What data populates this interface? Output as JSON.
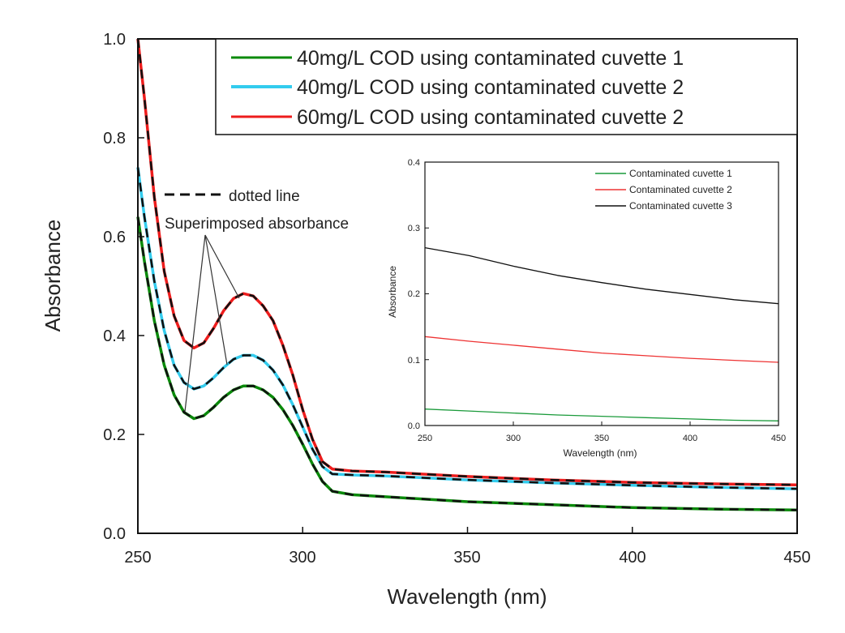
{
  "chart_data": [
    {
      "type": "line",
      "xlabel": "Wavelength (nm)",
      "ylabel": "Absorbance",
      "xlim": [
        250,
        450
      ],
      "ylim": [
        0.0,
        1.0
      ],
      "xticks": [
        "250",
        "300",
        "350",
        "400",
        "450"
      ],
      "yticks": [
        "0.0",
        "0.2",
        "0.4",
        "0.6",
        "0.8",
        "1.0"
      ],
      "legend_position": "top-right",
      "grid": false,
      "series": [
        {
          "name": "40mg/L COD using contaminated cuvette 1",
          "color": "#0a8a0a",
          "x": [
            250,
            252,
            255,
            258,
            261,
            264,
            267,
            270,
            273,
            276,
            279,
            282,
            285,
            288,
            291,
            294,
            297,
            300,
            303,
            306,
            309,
            315,
            325,
            350,
            375,
            400,
            425,
            450
          ],
          "y": [
            0.64,
            0.55,
            0.43,
            0.34,
            0.28,
            0.245,
            0.232,
            0.238,
            0.255,
            0.275,
            0.29,
            0.298,
            0.298,
            0.29,
            0.275,
            0.25,
            0.218,
            0.18,
            0.14,
            0.105,
            0.085,
            0.078,
            0.074,
            0.064,
            0.058,
            0.052,
            0.049,
            0.047
          ]
        },
        {
          "name": "40mg/L COD using contaminated cuvette 2",
          "color": "#33ccee",
          "x": [
            250,
            252,
            255,
            258,
            261,
            264,
            267,
            270,
            273,
            276,
            279,
            282,
            285,
            288,
            291,
            294,
            297,
            300,
            303,
            306,
            309,
            315,
            325,
            350,
            375,
            400,
            425,
            450
          ],
          "y": [
            0.74,
            0.64,
            0.51,
            0.41,
            0.34,
            0.305,
            0.292,
            0.298,
            0.315,
            0.335,
            0.352,
            0.36,
            0.36,
            0.35,
            0.33,
            0.3,
            0.26,
            0.215,
            0.17,
            0.135,
            0.12,
            0.118,
            0.116,
            0.108,
            0.102,
            0.097,
            0.093,
            0.09
          ]
        },
        {
          "name": "60mg/L COD using contaminated cuvette 2",
          "color": "#ee1c1c",
          "x": [
            250,
            252,
            255,
            258,
            261,
            264,
            267,
            270,
            273,
            276,
            279,
            282,
            285,
            288,
            291,
            294,
            297,
            300,
            303,
            306,
            309,
            315,
            325,
            350,
            375,
            400,
            425,
            450
          ],
          "y": [
            1.0,
            0.88,
            0.68,
            0.53,
            0.44,
            0.39,
            0.375,
            0.385,
            0.415,
            0.45,
            0.475,
            0.485,
            0.48,
            0.46,
            0.43,
            0.38,
            0.32,
            0.25,
            0.19,
            0.145,
            0.13,
            0.126,
            0.124,
            0.115,
            0.108,
            0.103,
            0.1,
            0.098
          ]
        }
      ],
      "annotations": {
        "dotted_line_label": "dotted line",
        "superimposed_label": "Superimposed absorbance"
      }
    },
    {
      "type": "line",
      "xlabel": "Wavelength (nm)",
      "ylabel": "Absorbance",
      "xlim": [
        250,
        450
      ],
      "ylim": [
        0.0,
        0.4
      ],
      "xticks": [
        "250",
        "300",
        "350",
        "400",
        "450"
      ],
      "yticks": [
        "0.0",
        "0.1",
        "0.2",
        "0.3",
        "0.4"
      ],
      "legend_position": "top-right",
      "grid": false,
      "series": [
        {
          "name": "Contaminated cuvette 1",
          "color": "#1a9a3a",
          "x": [
            250,
            275,
            300,
            325,
            350,
            375,
            400,
            425,
            450
          ],
          "y": [
            0.025,
            0.022,
            0.019,
            0.016,
            0.014,
            0.012,
            0.01,
            0.008,
            0.007
          ]
        },
        {
          "name": "Contaminated cuvette 2",
          "color": "#ee3333",
          "x": [
            250,
            275,
            300,
            325,
            350,
            375,
            400,
            425,
            450
          ],
          "y": [
            0.135,
            0.128,
            0.122,
            0.116,
            0.11,
            0.106,
            0.102,
            0.099,
            0.096
          ]
        },
        {
          "name": "Contaminated cuvette 3",
          "color": "#111111",
          "x": [
            250,
            275,
            300,
            325,
            350,
            375,
            400,
            425,
            450
          ],
          "y": [
            0.27,
            0.258,
            0.242,
            0.228,
            0.217,
            0.207,
            0.199,
            0.191,
            0.185
          ]
        }
      ]
    }
  ]
}
